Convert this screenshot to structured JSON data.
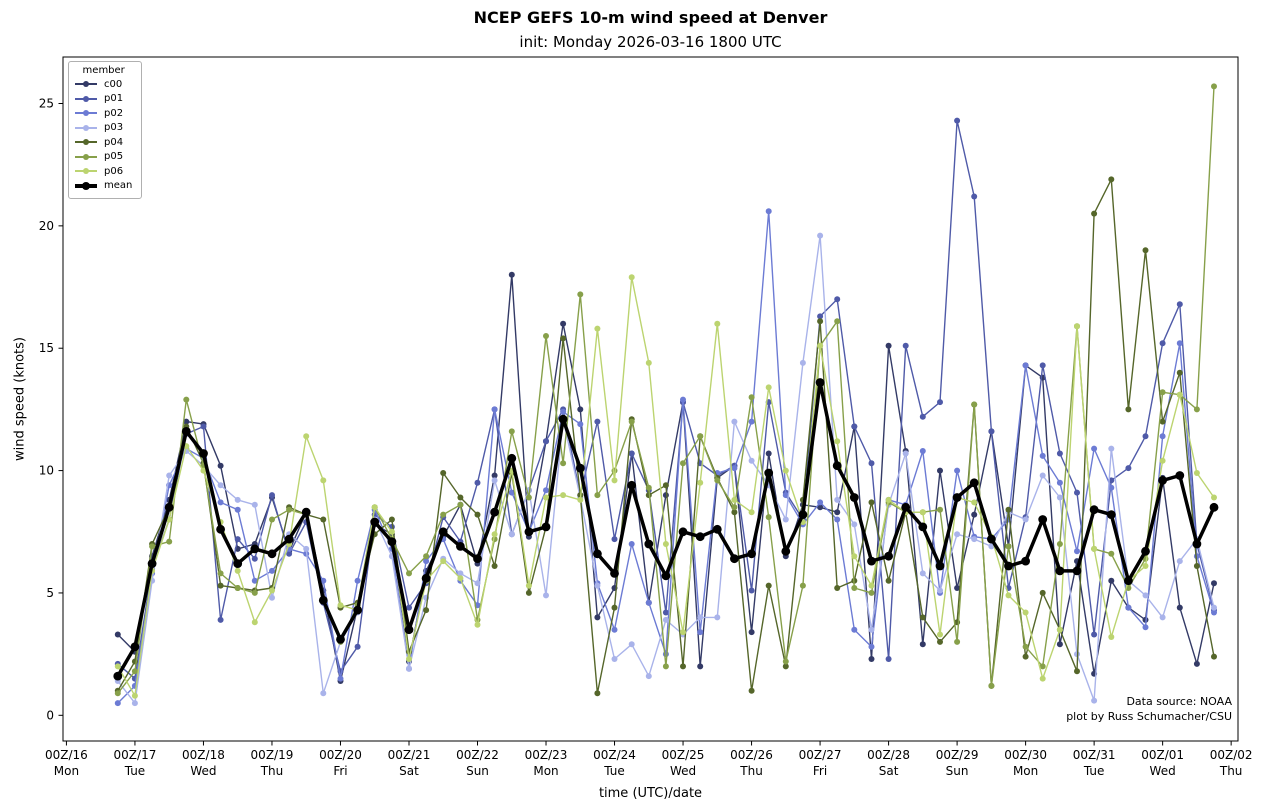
{
  "figure": {
    "title": "NCEP GEFS 10-m wind speed at Denver",
    "subtitle": "init: Monday 2026-03-16 1800 UTC",
    "annotations": {
      "line1": "Data source: NOAA",
      "line2": "plot by Russ Schumacher/CSU"
    }
  },
  "chart_data": {
    "type": "line",
    "title": "NCEP GEFS 10-m wind speed at Denver",
    "subtitle": "init: Monday 2026-03-16 1800 UTC",
    "xlabel": "time (UTC)/date",
    "ylabel": "wind speed (knots)",
    "ylim": [
      -1.05,
      26.9
    ],
    "yticks": [
      0,
      5,
      10,
      15,
      20,
      25
    ],
    "grid": false,
    "legend_title": "member",
    "legend_position": "upper left",
    "x_start_day": 0.75,
    "x_step_day": 0.25,
    "xtick_days": [
      0,
      1,
      2,
      3,
      4,
      5,
      6,
      7,
      8,
      9,
      10,
      11,
      12,
      13,
      14,
      15,
      16,
      17
    ],
    "xtick_labels": [
      [
        "00Z/16",
        "Mon"
      ],
      [
        "00Z/17",
        "Tue"
      ],
      [
        "00Z/18",
        "Wed"
      ],
      [
        "00Z/19",
        "Thu"
      ],
      [
        "00Z/20",
        "Fri"
      ],
      [
        "00Z/21",
        "Sat"
      ],
      [
        "00Z/22",
        "Sun"
      ],
      [
        "00Z/23",
        "Mon"
      ],
      [
        "00Z/24",
        "Tue"
      ],
      [
        "00Z/25",
        "Wed"
      ],
      [
        "00Z/26",
        "Thu"
      ],
      [
        "00Z/27",
        "Fri"
      ],
      [
        "00Z/28",
        "Sat"
      ],
      [
        "00Z/29",
        "Sun"
      ],
      [
        "00Z/30",
        "Mon"
      ],
      [
        "00Z/31",
        "Tue"
      ],
      [
        "00Z/01",
        "Wed"
      ],
      [
        "00Z/02",
        "Thu"
      ]
    ],
    "times": [
      "18Z/16",
      "00Z/17",
      "06Z/17",
      "12Z/17",
      "18Z/17",
      "00Z/18",
      "06Z/18",
      "12Z/18",
      "18Z/18",
      "00Z/19",
      "06Z/19",
      "12Z/19",
      "18Z/19",
      "00Z/20",
      "06Z/20",
      "12Z/20",
      "18Z/20",
      "00Z/21",
      "06Z/21",
      "12Z/21",
      "18Z/21",
      "00Z/22",
      "06Z/22",
      "12Z/22",
      "18Z/22",
      "00Z/23",
      "06Z/23",
      "12Z/23",
      "18Z/23",
      "00Z/24",
      "06Z/24",
      "12Z/24",
      "18Z/24",
      "00Z/25",
      "06Z/25",
      "12Z/25",
      "18Z/25",
      "00Z/26",
      "06Z/26",
      "12Z/26",
      "18Z/26",
      "00Z/27",
      "06Z/27",
      "12Z/27",
      "18Z/27",
      "00Z/28",
      "06Z/28",
      "12Z/28",
      "18Z/28",
      "00Z/29",
      "06Z/29",
      "12Z/29",
      "18Z/29",
      "00Z/30",
      "06Z/30",
      "12Z/30",
      "18Z/30",
      "00Z/31",
      "06Z/31",
      "12Z/31",
      "18Z/31",
      "00Z/01",
      "06Z/01",
      "12Z/01",
      "18Z/01"
    ],
    "series": [
      {
        "name": "c00",
        "color": "#333a66",
        "linewidth": 1.4,
        "markersize": 3,
        "values": [
          3.3,
          2.6,
          6.5,
          8.8,
          12.0,
          11.9,
          10.2,
          6.8,
          7.0,
          8.9,
          6.7,
          8.3,
          5.1,
          1.4,
          4.4,
          7.8,
          7.4,
          2.2,
          5.9,
          7.3,
          8.6,
          6.2,
          9.8,
          18.0,
          7.3,
          11.2,
          16.0,
          12.5,
          4.0,
          5.2,
          10.7,
          4.6,
          9.0,
          12.8,
          2.0,
          9.7,
          10.2,
          3.4,
          10.7,
          6.5,
          8.6,
          8.5,
          8.3,
          11.8,
          2.3,
          15.1,
          10.8,
          2.9,
          10.0,
          5.2,
          8.2,
          11.6,
          6.9,
          14.3,
          13.8,
          2.9,
          6.3,
          1.7,
          5.5,
          4.4,
          3.9,
          9.7,
          4.4,
          2.1,
          5.4
        ]
      },
      {
        "name": "p01",
        "color": "#4f5aa8",
        "linewidth": 1.4,
        "markersize": 3,
        "values": [
          2.1,
          1.5,
          6.0,
          8.0,
          11.5,
          11.8,
          3.9,
          7.2,
          6.4,
          9.0,
          6.6,
          7.9,
          4.6,
          1.8,
          2.8,
          8.2,
          7.7,
          4.4,
          5.4,
          8.1,
          7.1,
          9.5,
          12.5,
          7.4,
          9.2,
          11.2,
          12.5,
          9.0,
          12.0,
          7.2,
          10.7,
          9.2,
          4.2,
          12.8,
          10.3,
          9.8,
          10.2,
          5.1,
          12.8,
          9.1,
          8.0,
          16.3,
          17.0,
          11.8,
          10.3,
          2.3,
          15.1,
          12.2,
          12.8,
          24.3,
          21.2,
          11.6,
          5.2,
          8.1,
          14.3,
          10.7,
          9.1,
          3.3,
          9.6,
          10.1,
          11.4,
          15.2,
          16.8,
          7.0,
          4.3
        ]
      },
      {
        "name": "p02",
        "color": "#6c7bd4",
        "linewidth": 1.4,
        "markersize": 3,
        "values": [
          0.5,
          1.2,
          5.8,
          9.4,
          10.9,
          10.5,
          8.7,
          8.4,
          5.5,
          5.9,
          6.8,
          6.6,
          5.5,
          1.5,
          5.5,
          8.4,
          6.8,
          1.9,
          6.3,
          7.2,
          5.5,
          4.5,
          12.5,
          9.1,
          7.5,
          9.2,
          12.4,
          11.9,
          5.4,
          3.5,
          7.0,
          4.6,
          2.5,
          12.9,
          3.4,
          9.9,
          10.1,
          12.0,
          20.6,
          9.0,
          7.8,
          8.7,
          8.0,
          3.5,
          2.8,
          8.8,
          8.6,
          10.8,
          5.0,
          10.0,
          7.3,
          7.2,
          8.0,
          14.3,
          10.6,
          9.5,
          6.7,
          10.9,
          9.3,
          4.4,
          3.6,
          11.4,
          15.2,
          6.5,
          4.2
        ]
      },
      {
        "name": "p03",
        "color": "#a9b3ea",
        "linewidth": 1.4,
        "markersize": 3,
        "values": [
          1.4,
          0.5,
          5.5,
          9.8,
          10.8,
          10.2,
          9.4,
          8.8,
          8.6,
          4.8,
          7.4,
          6.8,
          0.9,
          3.0,
          4.2,
          8.0,
          6.5,
          1.9,
          4.8,
          6.4,
          5.8,
          5.4,
          9.6,
          7.4,
          9.2,
          4.9,
          12.1,
          8.9,
          5.3,
          2.3,
          2.9,
          1.6,
          3.9,
          3.3,
          4.0,
          4.0,
          12.0,
          10.4,
          9.4,
          8.0,
          14.4,
          19.6,
          8.8,
          7.8,
          3.5,
          8.6,
          10.7,
          5.8,
          5.1,
          7.4,
          7.2,
          6.9,
          8.3,
          8.0,
          9.8,
          8.9,
          2.5,
          0.6,
          10.9,
          5.5,
          4.9,
          4.0,
          6.3,
          7.2,
          4.4
        ]
      },
      {
        "name": "p04",
        "color": "#55662a",
        "linewidth": 1.4,
        "markersize": 3,
        "values": [
          1.0,
          2.2,
          7.0,
          8.5,
          11.8,
          10.3,
          5.3,
          5.2,
          5.1,
          5.2,
          8.5,
          8.2,
          8.0,
          4.4,
          4.6,
          7.4,
          8.0,
          2.6,
          4.3,
          9.9,
          8.9,
          8.2,
          6.1,
          9.9,
          5.0,
          7.7,
          15.4,
          9.0,
          0.9,
          4.4,
          12.1,
          9.0,
          9.4,
          2.0,
          11.4,
          9.7,
          8.3,
          1.0,
          5.3,
          2.0,
          8.8,
          16.1,
          5.2,
          5.5,
          8.7,
          5.5,
          8.3,
          4.0,
          3.0,
          3.8,
          12.7,
          1.2,
          8.4,
          2.4,
          5.0,
          3.5,
          1.8,
          20.5,
          21.9,
          12.5,
          19.0,
          12.0,
          14.0,
          6.1,
          2.4
        ]
      },
      {
        "name": "p05",
        "color": "#87a04a",
        "linewidth": 1.4,
        "markersize": 3,
        "values": [
          0.9,
          1.8,
          6.9,
          7.1,
          12.9,
          10.2,
          5.8,
          5.2,
          5.0,
          8.0,
          8.4,
          8.2,
          4.7,
          3.0,
          4.5,
          8.5,
          7.2,
          5.8,
          6.5,
          8.2,
          8.6,
          3.9,
          7.2,
          11.6,
          8.9,
          15.5,
          10.3,
          17.2,
          9.0,
          10.0,
          12.0,
          9.3,
          2.0,
          10.3,
          11.4,
          9.6,
          8.5,
          13.0,
          8.1,
          2.2,
          5.3,
          15.1,
          16.1,
          5.2,
          5.0,
          8.7,
          8.3,
          8.3,
          8.4,
          3.0,
          12.7,
          1.2,
          6.9,
          2.8,
          2.0,
          7.0,
          15.9,
          6.8,
          6.6,
          5.2,
          6.4,
          13.2,
          13.1,
          12.5,
          25.7
        ]
      },
      {
        "name": "p06",
        "color": "#bcd470",
        "linewidth": 1.4,
        "markersize": 3,
        "values": [
          2.0,
          0.8,
          5.9,
          8.0,
          11.0,
          10.0,
          7.9,
          5.9,
          3.8,
          5.1,
          7.0,
          11.4,
          9.6,
          4.5,
          4.3,
          8.5,
          7.5,
          2.3,
          5.5,
          6.3,
          5.6,
          3.7,
          7.4,
          10.0,
          5.3,
          8.9,
          9.0,
          8.8,
          15.8,
          9.6,
          17.9,
          14.4,
          7.0,
          3.4,
          9.5,
          16.0,
          8.8,
          8.3,
          13.4,
          10.0,
          7.9,
          15.1,
          11.2,
          6.5,
          5.3,
          8.8,
          8.3,
          8.3,
          3.3,
          8.9,
          8.7,
          7.3,
          4.9,
          4.2,
          1.5,
          3.5,
          15.9,
          6.8,
          3.2,
          5.5,
          6.1,
          10.4,
          13.1,
          9.9,
          8.9
        ]
      },
      {
        "name": "mean",
        "color": "#000000",
        "linewidth": 3.5,
        "markersize": 4.4,
        "values": [
          1.6,
          2.8,
          6.2,
          8.5,
          11.6,
          10.7,
          7.6,
          6.2,
          6.8,
          6.6,
          7.2,
          8.3,
          4.7,
          3.1,
          4.3,
          7.9,
          7.1,
          3.5,
          5.6,
          7.5,
          6.9,
          6.4,
          8.3,
          10.5,
          7.5,
          7.7,
          12.1,
          10.1,
          6.6,
          5.8,
          9.4,
          7.0,
          5.7,
          7.5,
          7.3,
          7.6,
          6.4,
          6.6,
          9.9,
          6.7,
          8.2,
          13.6,
          10.2,
          8.9,
          6.3,
          6.5,
          8.5,
          7.7,
          6.1,
          8.9,
          9.5,
          7.2,
          6.1,
          6.3,
          8.0,
          5.9,
          5.9,
          8.4,
          8.2,
          5.5,
          6.7,
          9.6,
          9.8,
          7.0,
          8.5
        ]
      }
    ]
  }
}
